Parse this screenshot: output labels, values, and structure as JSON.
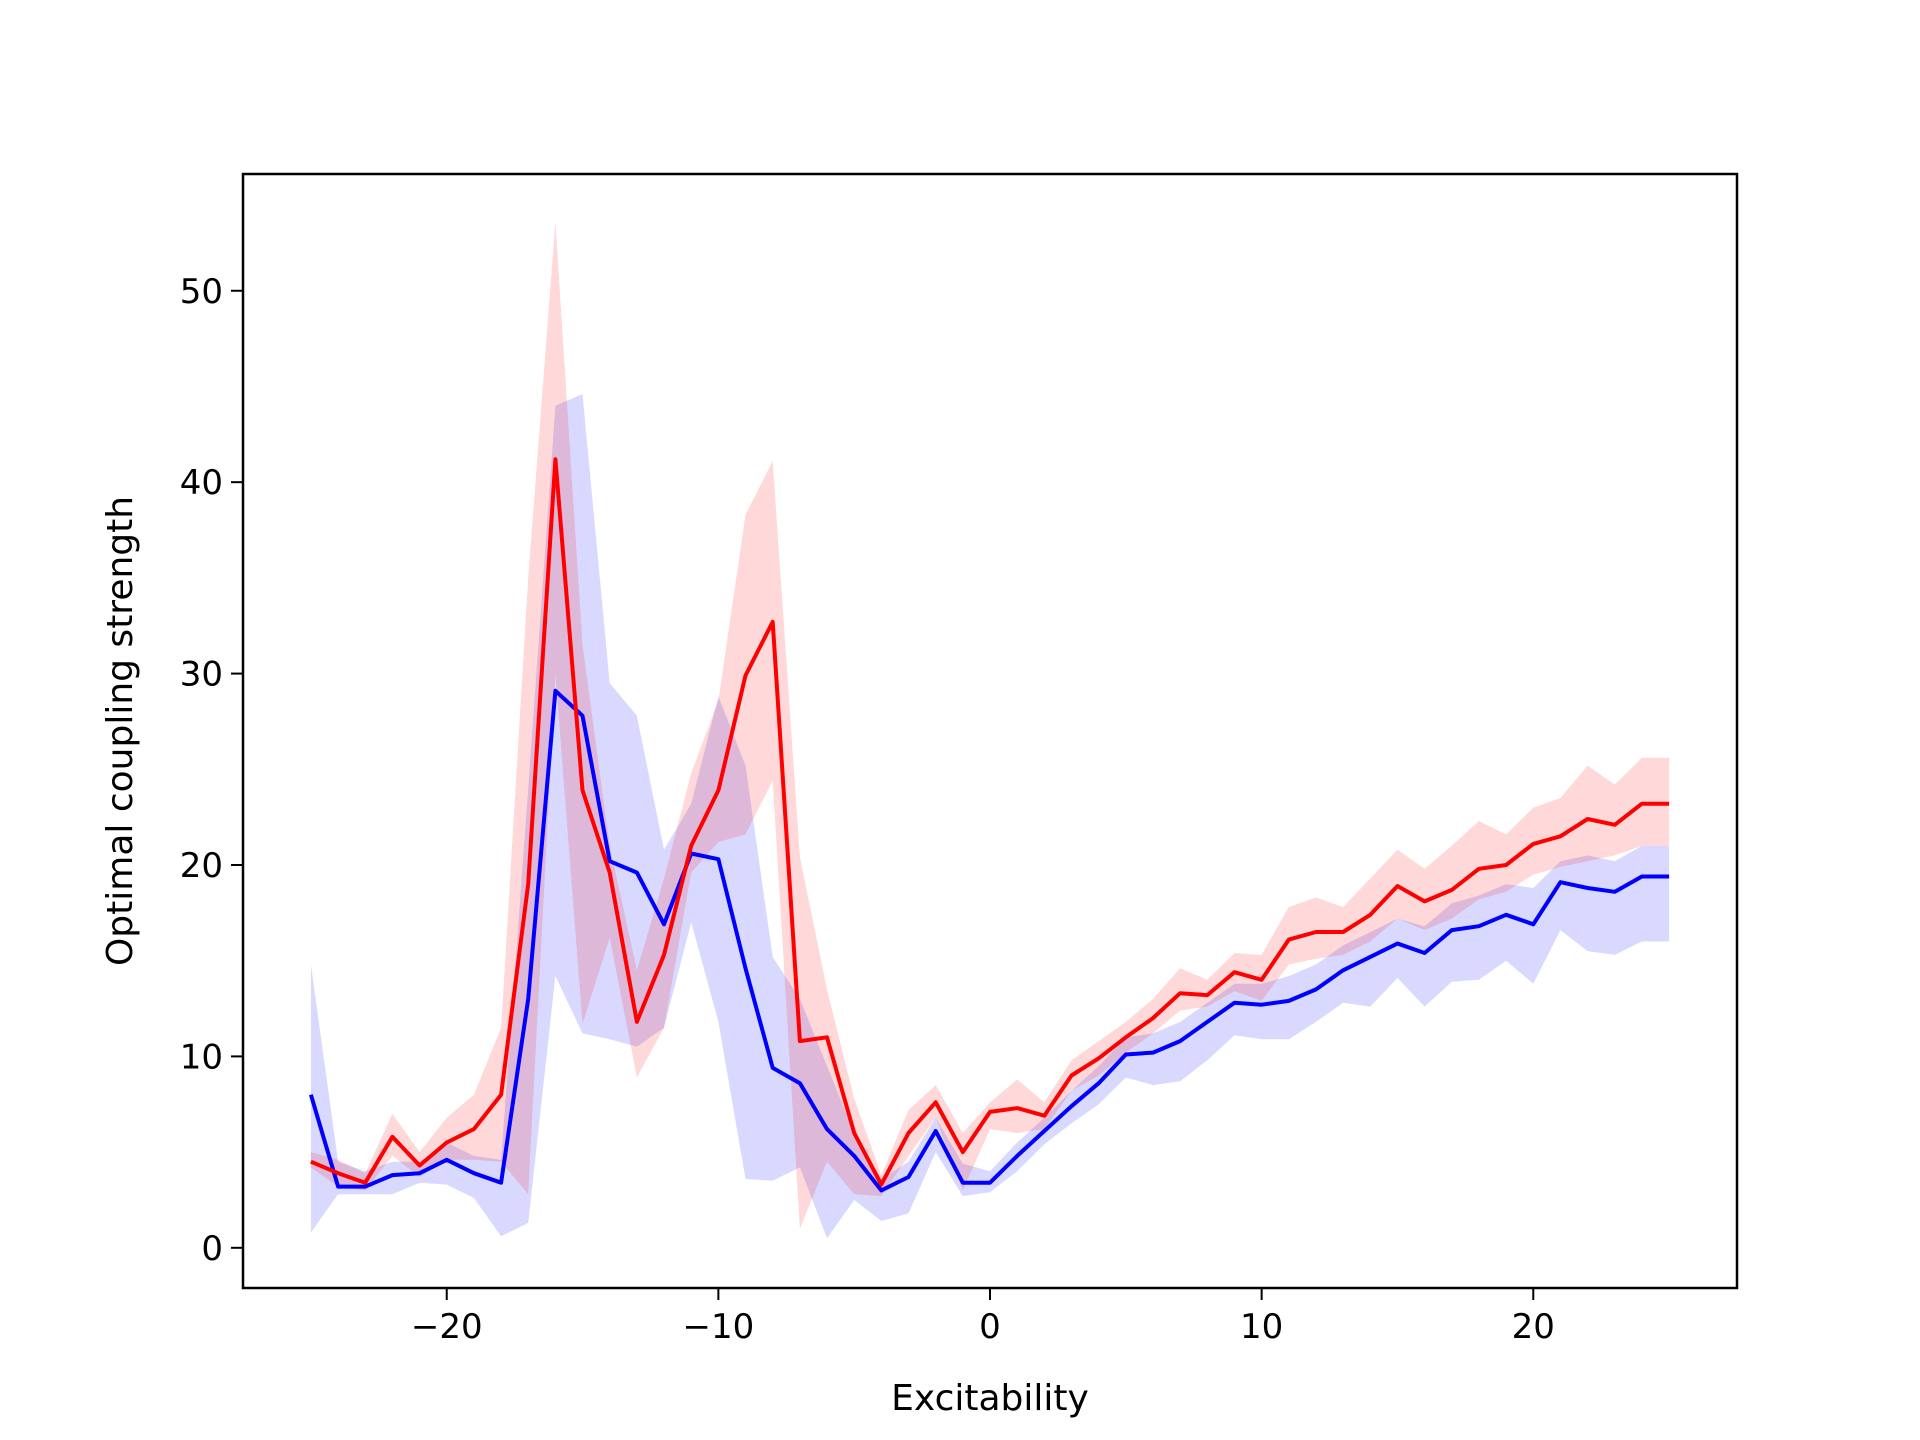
{
  "chart_data": {
    "type": "line",
    "title": "",
    "xlabel": "Excitability",
    "ylabel": "Optimal coupling strength",
    "xlim": [
      -27.5,
      27.5
    ],
    "ylim": [
      -2.1,
      56.1
    ],
    "xticks": [
      -20,
      -10,
      0,
      10,
      20
    ],
    "xtick_labels": [
      "−20",
      "−10",
      "0",
      "10",
      "20"
    ],
    "yticks": [
      0,
      10,
      20,
      30,
      40,
      50
    ],
    "ytick_labels": [
      "0",
      "10",
      "20",
      "30",
      "40",
      "50"
    ],
    "grid": false,
    "legend": "none",
    "x": [
      -25,
      -24,
      -23,
      -22,
      -21,
      -20,
      -19,
      -18,
      -17,
      -16,
      -15,
      -14,
      -13,
      -12,
      -11,
      -10,
      -9,
      -8,
      -7,
      -6,
      -5,
      -4,
      -3,
      -2,
      -1,
      0,
      1,
      2,
      3,
      4,
      5,
      6,
      7,
      8,
      9,
      10,
      11,
      12,
      13,
      14,
      15,
      16,
      17,
      18,
      19,
      20,
      21,
      22,
      23,
      24,
      25
    ],
    "series": [
      {
        "color": "#0000ff",
        "band_color": "#0000ff",
        "band_opacity": 0.15,
        "values": [
          8.0,
          3.2,
          3.2,
          3.8,
          3.9,
          4.6,
          3.9,
          3.4,
          13.0,
          29.1,
          27.8,
          20.2,
          19.6,
          16.9,
          20.6,
          20.3,
          14.6,
          9.4,
          8.6,
          6.2,
          4.8,
          3.0,
          3.7,
          6.1,
          3.4,
          3.4,
          4.8,
          6.1,
          7.4,
          8.6,
          10.1,
          10.2,
          10.8,
          11.8,
          12.8,
          12.7,
          12.9,
          13.5,
          14.5,
          15.2,
          15.9,
          15.4,
          16.6,
          16.8,
          17.4,
          16.9,
          19.1,
          18.8,
          18.6,
          19.4,
          19.4
        ],
        "upper": [
          14.8,
          4.5,
          4.0,
          4.5,
          4.5,
          5.5,
          4.8,
          4.6,
          24.0,
          44.0,
          44.6,
          29.5,
          27.8,
          20.8,
          23.2,
          28.8,
          25.2,
          15.2,
          13.0,
          9.5,
          6.0,
          3.6,
          4.5,
          6.8,
          4.4,
          4.0,
          5.5,
          6.8,
          8.2,
          9.5,
          11.0,
          11.2,
          11.8,
          12.8,
          13.8,
          13.8,
          14.2,
          14.8,
          15.8,
          16.5,
          17.2,
          16.8,
          18.0,
          18.4,
          19.0,
          18.8,
          20.2,
          20.5,
          20.2,
          21.0,
          21.0
        ],
        "lower": [
          0.8,
          2.8,
          2.8,
          2.8,
          3.4,
          3.3,
          2.6,
          0.6,
          1.3,
          14.2,
          11.2,
          10.9,
          10.5,
          11.5,
          17.0,
          11.8,
          3.6,
          3.5,
          4.2,
          0.5,
          2.5,
          1.4,
          1.8,
          5.0,
          2.7,
          2.9,
          4.0,
          5.4,
          6.5,
          7.5,
          8.9,
          8.5,
          8.7,
          9.8,
          11.1,
          10.9,
          10.9,
          11.8,
          12.8,
          12.6,
          14.1,
          12.6,
          13.9,
          14.0,
          15.0,
          13.8,
          16.6,
          15.5,
          15.3,
          16.0,
          16.0
        ]
      },
      {
        "color": "#ff0000",
        "band_color": "#ff0000",
        "band_opacity": 0.15,
        "values": [
          4.5,
          3.9,
          3.4,
          5.8,
          4.3,
          5.5,
          6.2,
          8.0,
          19.0,
          41.2,
          23.9,
          19.6,
          11.8,
          15.3,
          21.0,
          23.9,
          29.9,
          32.7,
          10.8,
          11.0,
          6.0,
          3.3,
          6.0,
          7.6,
          5.0,
          7.1,
          7.3,
          6.9,
          9.0,
          9.9,
          11.0,
          12.0,
          13.3,
          13.2,
          14.4,
          14.0,
          16.1,
          16.5,
          16.5,
          17.4,
          18.9,
          18.1,
          18.7,
          19.8,
          20.0,
          21.1,
          21.5,
          22.4,
          22.1,
          23.2,
          23.2
        ],
        "upper": [
          5.0,
          4.6,
          3.9,
          7.0,
          5.0,
          6.8,
          8.0,
          11.5,
          35.0,
          53.6,
          31.5,
          21.0,
          14.5,
          19.3,
          24.8,
          28.6,
          38.3,
          41.1,
          20.4,
          13.5,
          7.8,
          3.8,
          7.2,
          8.5,
          6.0,
          7.6,
          8.8,
          7.6,
          9.8,
          10.8,
          11.8,
          13.0,
          14.6,
          14.0,
          15.4,
          15.3,
          17.8,
          18.3,
          17.8,
          19.3,
          20.8,
          19.8,
          21.0,
          22.3,
          21.6,
          23.0,
          23.5,
          25.2,
          24.2,
          25.6,
          25.6
        ],
        "lower": [
          4.2,
          3.2,
          3.0,
          4.8,
          3.7,
          4.6,
          4.6,
          4.5,
          2.8,
          30.0,
          11.7,
          16.2,
          8.9,
          11.5,
          19.6,
          21.2,
          21.6,
          24.4,
          1.0,
          4.5,
          2.8,
          2.7,
          4.8,
          6.8,
          3.0,
          6.2,
          6.0,
          6.2,
          8.2,
          9.0,
          10.2,
          11.2,
          12.4,
          12.6,
          13.4,
          12.9,
          14.8,
          15.1,
          15.3,
          16.0,
          17.2,
          16.6,
          17.2,
          18.2,
          18.6,
          19.5,
          19.9,
          20.2,
          20.5,
          21.0,
          21.0
        ]
      }
    ]
  }
}
